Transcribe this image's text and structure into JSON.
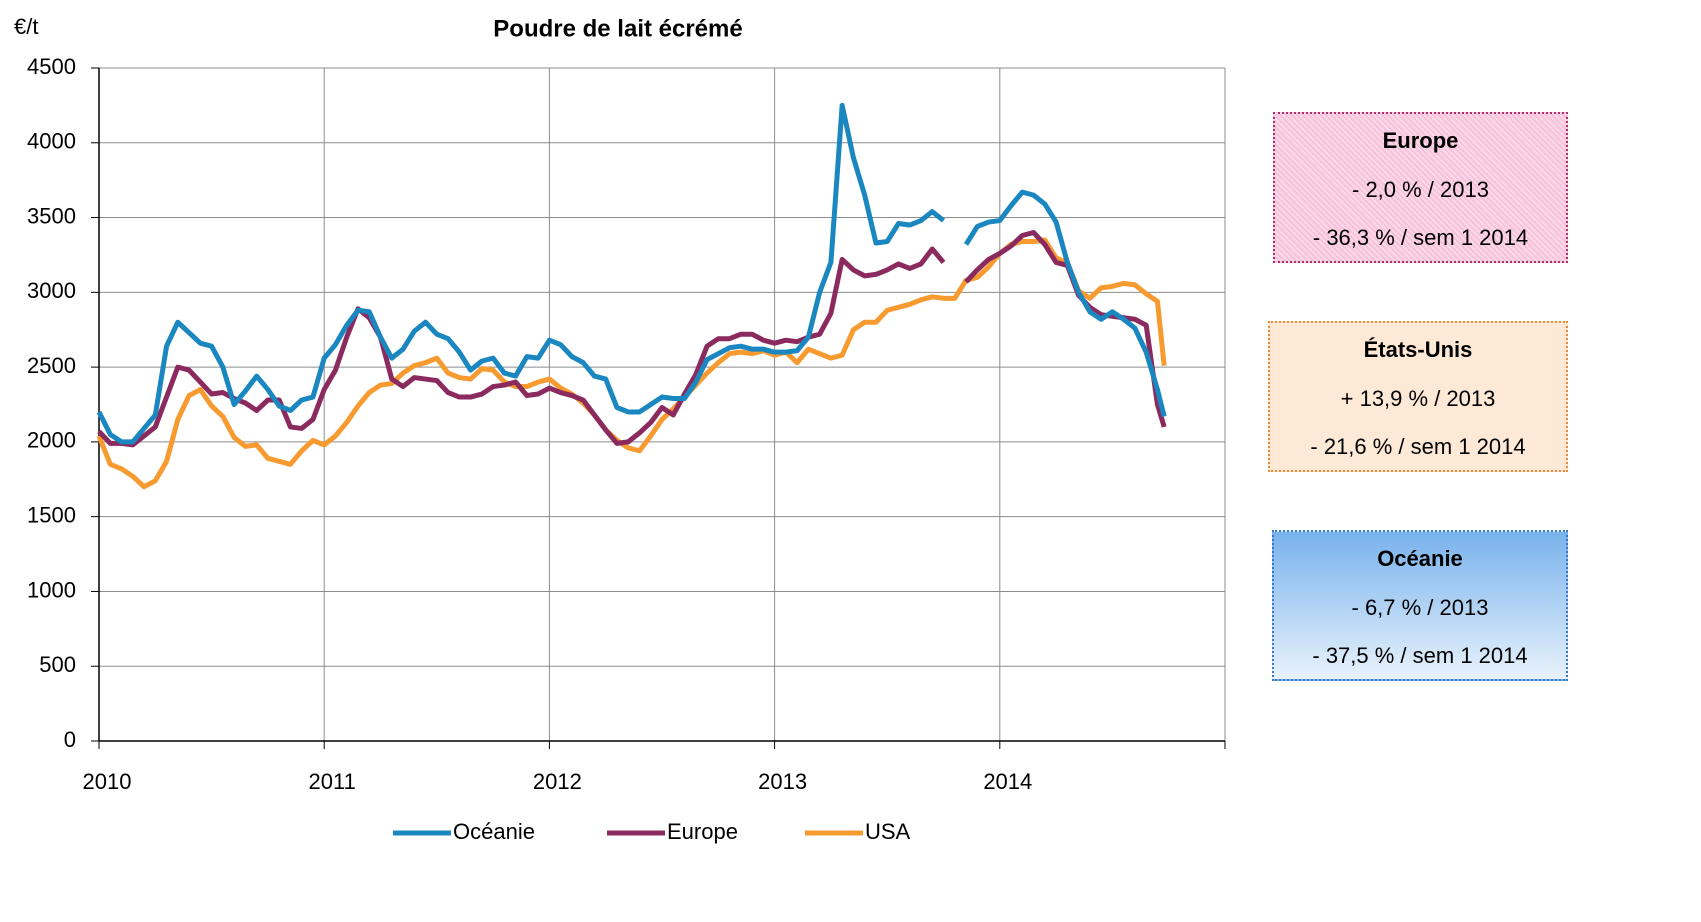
{
  "chart_data": {
    "type": "line",
    "title": "Poudre de lait écrémé",
    "y_label": "€/t",
    "x": [
      2010,
      2010.05,
      2010.1,
      2010.15,
      2010.2,
      2010.25,
      2010.3,
      2010.35,
      2010.4,
      2010.45,
      2010.5,
      2010.55,
      2010.6,
      2010.65,
      2010.7,
      2010.75,
      2010.8,
      2010.85,
      2010.9,
      2010.95,
      2011,
      2011.05,
      2011.1,
      2011.15,
      2011.2,
      2011.25,
      2011.3,
      2011.35,
      2011.4,
      2011.45,
      2011.5,
      2011.55,
      2011.6,
      2011.65,
      2011.7,
      2011.75,
      2011.8,
      2011.85,
      2011.9,
      2011.95,
      2012,
      2012.05,
      2012.1,
      2012.15,
      2012.2,
      2012.25,
      2012.3,
      2012.35,
      2012.4,
      2012.45,
      2012.5,
      2012.55,
      2012.6,
      2012.65,
      2012.7,
      2012.75,
      2012.8,
      2012.85,
      2012.9,
      2012.95,
      2013,
      2013.05,
      2013.1,
      2013.15,
      2013.2,
      2013.25,
      2013.3,
      2013.35,
      2013.4,
      2013.45,
      2013.5,
      2013.55,
      2013.6,
      2013.65,
      2013.7,
      2013.75,
      2013.8,
      2013.85,
      2013.9,
      2013.95,
      2014,
      2014.05,
      2014.1,
      2014.15,
      2014.2,
      2014.25,
      2014.3,
      2014.35,
      2014.4,
      2014.45,
      2014.5,
      2014.55,
      2014.6,
      2014.65,
      2014.7,
      2014.73
    ],
    "series": [
      {
        "name": "Océanie",
        "color": "#1a87c0",
        "values": [
          2200,
          2050,
          2000,
          2000,
          2090,
          2180,
          2640,
          2800,
          2730,
          2660,
          2640,
          2500,
          2250,
          2340,
          2440,
          2350,
          2240,
          2210,
          2280,
          2300,
          2560,
          2650,
          2780,
          2880,
          2870,
          2700,
          2560,
          2620,
          2740,
          2800,
          2720,
          2690,
          2600,
          2480,
          2540,
          2560,
          2460,
          2440,
          2570,
          2560,
          2680,
          2650,
          2570,
          2530,
          2440,
          2420,
          2230,
          2200,
          2200,
          2250,
          2300,
          2290,
          2290,
          2400,
          2550,
          2590,
          2630,
          2640,
          2620,
          2620,
          2600,
          2600,
          2610,
          2700,
          3000,
          3200,
          4250,
          3900,
          3650,
          3330,
          3340,
          3460,
          3450,
          3480,
          3540,
          3480,
          null,
          3320,
          3440,
          3470,
          3480,
          3580,
          3670,
          3650,
          3590,
          3470,
          3200,
          3000,
          2870,
          2820,
          2870,
          2820,
          2760,
          2600,
          2350,
          2170
        ]
      },
      {
        "name": "Europe",
        "color": "#8b2a5e",
        "values": [
          2070,
          1990,
          1990,
          1980,
          2040,
          2100,
          2300,
          2500,
          2480,
          2400,
          2320,
          2330,
          2290,
          2260,
          2210,
          2280,
          2280,
          2100,
          2090,
          2150,
          2350,
          2480,
          2700,
          2890,
          2830,
          2700,
          2420,
          2370,
          2430,
          2420,
          2410,
          2330,
          2300,
          2300,
          2320,
          2370,
          2380,
          2400,
          2310,
          2320,
          2360,
          2330,
          2310,
          2280,
          2180,
          2080,
          1990,
          2000,
          2060,
          2130,
          2230,
          2180,
          2320,
          2450,
          2640,
          2690,
          2690,
          2720,
          2720,
          2680,
          2660,
          2680,
          2670,
          2700,
          2720,
          2860,
          3220,
          3150,
          3110,
          3120,
          3150,
          3190,
          3160,
          3190,
          3290,
          3200,
          null,
          3070,
          3150,
          3220,
          3260,
          3310,
          3380,
          3400,
          3320,
          3200,
          3180,
          2980,
          2900,
          2850,
          2840,
          2830,
          2820,
          2780,
          2250,
          2100
        ]
      },
      {
        "name": "USA",
        "color": "#f79a30",
        "values": [
          2040,
          1850,
          1820,
          1770,
          1700,
          1740,
          1870,
          2150,
          2310,
          2350,
          2240,
          2170,
          2030,
          1970,
          1980,
          1890,
          1870,
          1850,
          1940,
          2010,
          1980,
          2040,
          2130,
          2240,
          2330,
          2380,
          2390,
          2460,
          2510,
          2530,
          2560,
          2460,
          2430,
          2420,
          2490,
          2480,
          2400,
          2370,
          2370,
          2400,
          2420,
          2360,
          2320,
          2260,
          2180,
          2080,
          2010,
          1960,
          1940,
          2040,
          2150,
          2220,
          2300,
          2380,
          2460,
          2530,
          2590,
          2600,
          2590,
          2610,
          2580,
          2600,
          2530,
          2620,
          2590,
          2560,
          2580,
          2750,
          2800,
          2800,
          2880,
          2900,
          2920,
          2950,
          2970,
          2960,
          2960,
          3080,
          3100,
          3170,
          3260,
          3320,
          3340,
          3340,
          3350,
          3230,
          3200,
          3010,
          2960,
          3030,
          3040,
          3060,
          3050,
          2990,
          2940,
          2510
        ]
      }
    ],
    "xlim": [
      2010,
      2015
    ],
    "xticks": [
      2010,
      2011,
      2012,
      2013,
      2014
    ],
    "ylim": [
      0,
      4500
    ],
    "yticks": [
      0,
      500,
      1000,
      1500,
      2000,
      2500,
      3000,
      3500,
      4000,
      4500
    ],
    "grid": true,
    "legend": "bottom",
    "annotations": [
      {
        "title": "Europe",
        "lines": [
          "- 2,0 % / 2013",
          "- 36,3 % / sem 1 2014"
        ]
      },
      {
        "title": "États-Unis",
        "lines": [
          "+ 13,9 % / 2013",
          "- 21,6 % / sem 1 2014"
        ]
      },
      {
        "title": "Océanie",
        "lines": [
          "- 6,7 % / 2013",
          "- 37,5 % / sem 1 2014"
        ]
      }
    ]
  }
}
